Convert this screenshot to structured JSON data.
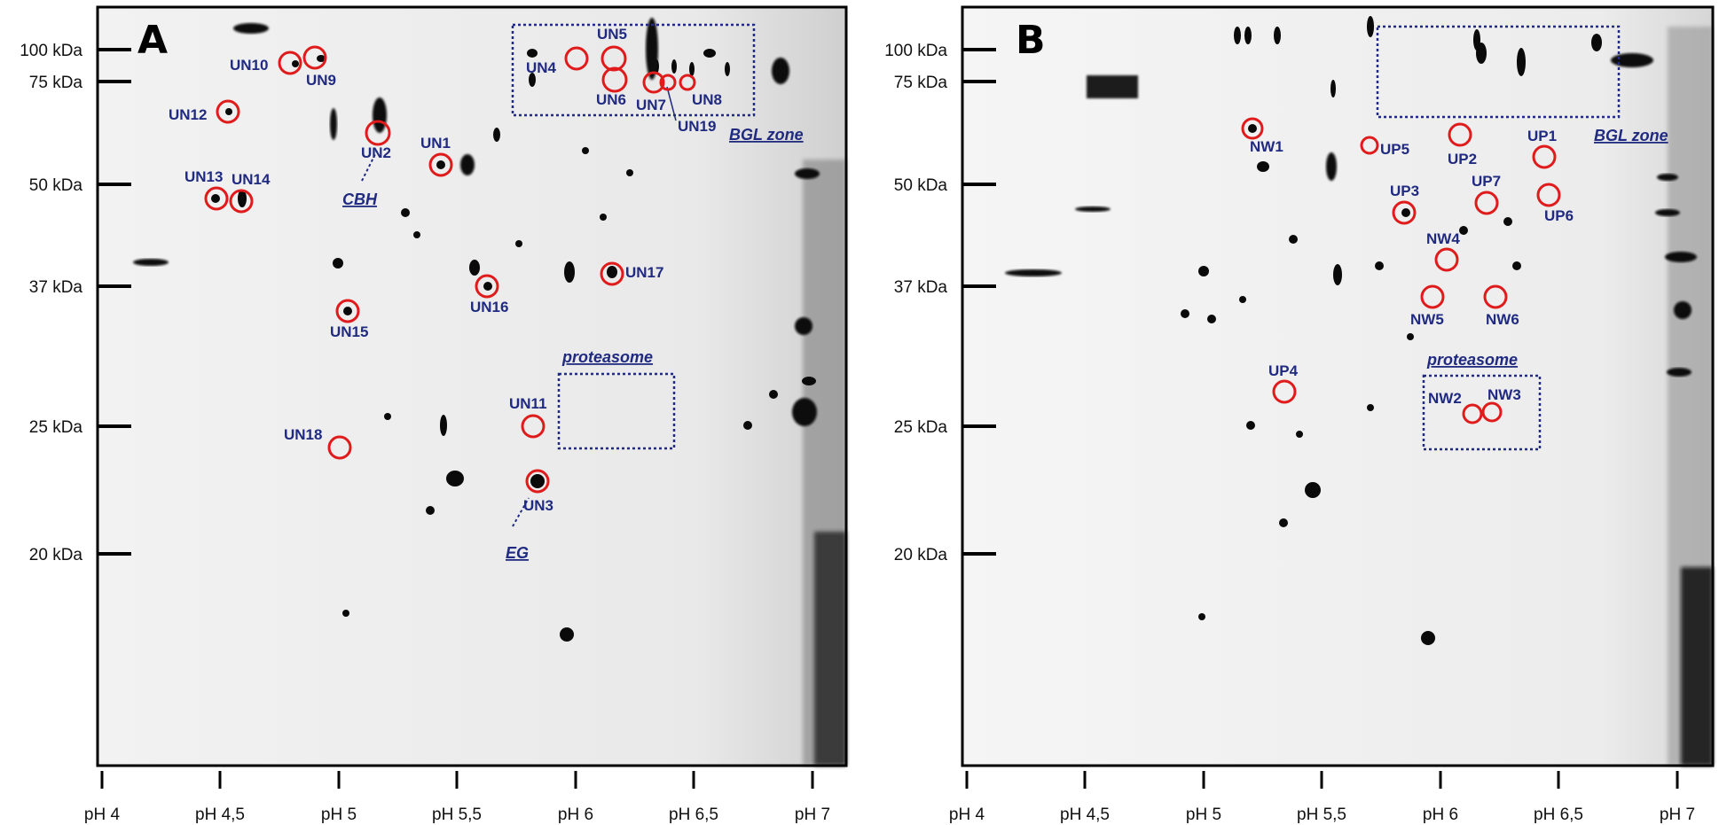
{
  "colors": {
    "label_blue": "#1f2a80",
    "circle_red": "#e01b1b",
    "spot_dark": "#0a0a0a",
    "gel_background": "#ececec"
  },
  "mw_labels": [
    "100 kDa",
    "75 kDa",
    "50 kDa",
    "37 kDa",
    "25 kDa",
    "20 kDa"
  ],
  "ph_labels": [
    "pH 4",
    "pH 4,5",
    "pH 5",
    "pH 5,5",
    "pH 6",
    "pH 6,5",
    "pH 7"
  ],
  "panels": [
    {
      "letter": "A",
      "spot_labels": [
        "UN10",
        "UN9",
        "UN4",
        "UN5",
        "UN6",
        "UN7",
        "UN8",
        "UN19",
        "UN12",
        "UN2",
        "UN1",
        "UN13",
        "UN14",
        "UN17",
        "UN16",
        "UN15",
        "UN11",
        "UN18",
        "UN3"
      ],
      "zone_labels": [
        "BGL zone",
        "CBH",
        "proteasome",
        "EG"
      ]
    },
    {
      "letter": "B",
      "spot_labels": [
        "NW1",
        "UP5",
        "UP2",
        "UP1",
        "UP3",
        "UP7",
        "UP6",
        "NW4",
        "NW5",
        "NW6",
        "UP4",
        "NW2",
        "NW3"
      ],
      "zone_labels": [
        "BGL zone",
        "proteasome"
      ]
    }
  ]
}
